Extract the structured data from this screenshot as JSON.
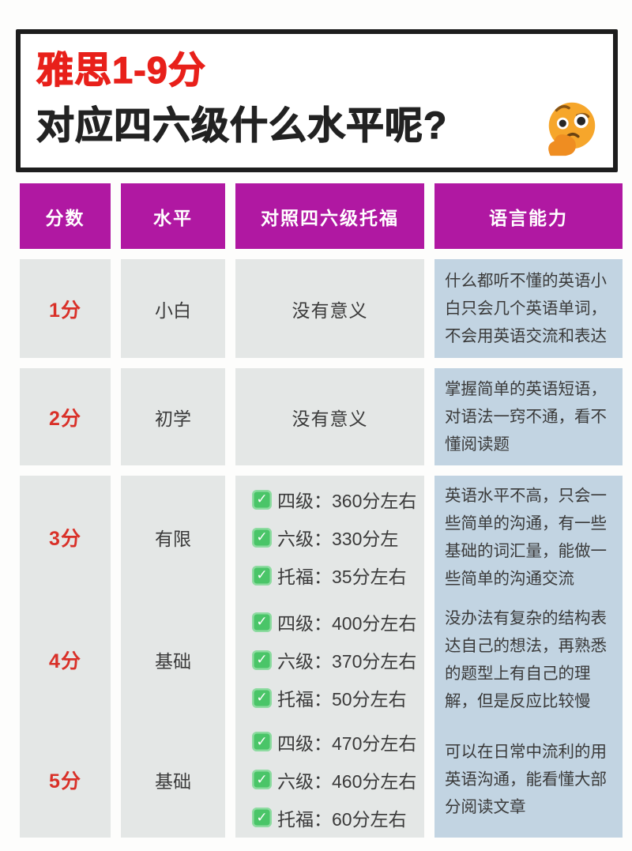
{
  "header": {
    "title_line1": "雅思1-9分",
    "title_line2": "对应四六级什么水平呢?",
    "emoji": "thinking-face"
  },
  "table": {
    "columns": [
      "分数",
      "水平",
      "对照四六级托福",
      "语言能力"
    ],
    "rows": [
      {
        "score": "1分",
        "level": "小白",
        "comparison": [
          {
            "checked": false,
            "text": "没有意义"
          }
        ],
        "ability": "什么都听不懂的英语小白只会几个英语单词，不会用英语交流和表达"
      },
      {
        "score": "2分",
        "level": "初学",
        "comparison": [
          {
            "checked": false,
            "text": "没有意义"
          }
        ],
        "ability": "掌握简单的英语短语，对语法一窍不通，看不懂阅读题"
      },
      {
        "score": "3分",
        "level": "有限",
        "comparison": [
          {
            "checked": true,
            "text": "四级：360分左右"
          },
          {
            "checked": true,
            "text": "六级：330分左"
          },
          {
            "checked": true,
            "text": "托福：35分左右"
          }
        ],
        "ability": "英语水平不高，只会一些简单的沟通，有一些基础的词汇量，能做一些简单的沟通交流"
      },
      {
        "score": "4分",
        "level": "基础",
        "comparison": [
          {
            "checked": true,
            "text": "四级：400分左右"
          },
          {
            "checked": true,
            "text": "六级：370分左右"
          },
          {
            "checked": true,
            "text": "托福：50分左右"
          }
        ],
        "ability": "没办法有复杂的结构表达自己的想法，再熟悉的题型上有自己的理解，但是反应比较慢"
      },
      {
        "score": "5分",
        "level": "基础",
        "comparison": [
          {
            "checked": true,
            "text": "四级：470分左右"
          },
          {
            "checked": true,
            "text": "六级：460分左右"
          },
          {
            "checked": true,
            "text": "托福：60分左右"
          }
        ],
        "ability": "可以在日常中流利的用英语沟通，能看懂大部分阅读文章"
      }
    ]
  },
  "icons": {
    "check": "✓"
  },
  "colors": {
    "header_magenta": "#b018a2",
    "title_red": "#e8201a",
    "score_red": "#d93028",
    "check_green": "#4ac568",
    "cell_gray": "#e4e7e6",
    "ability_blue": "#c2d4e2",
    "border_black": "#1d1d1d"
  }
}
